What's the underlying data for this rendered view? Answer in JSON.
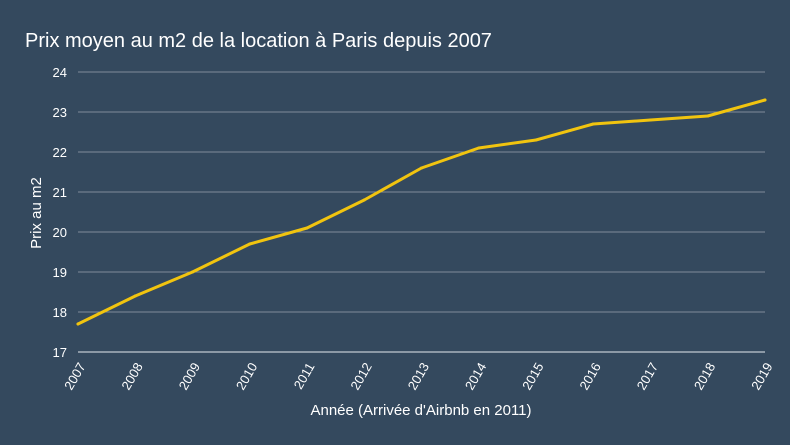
{
  "chart_data": {
    "type": "line",
    "title": "Prix moyen au m2 de la location à Paris depuis 2007",
    "xlabel": "Année (Arrivée d'Airbnb en 2011)",
    "ylabel": "Prix au m2",
    "x": [
      "2007",
      "2008",
      "2009",
      "2010",
      "2011",
      "2012",
      "2013",
      "2014",
      "2015",
      "2016",
      "2017",
      "2018",
      "2019"
    ],
    "series": [
      {
        "values": [
          17.7,
          18.4,
          19.0,
          19.7,
          20.1,
          20.8,
          21.6,
          22.1,
          22.3,
          22.7,
          22.8,
          22.9,
          23.3
        ]
      }
    ],
    "ylim": [
      17,
      24
    ],
    "yticks": [
      17,
      18,
      19,
      20,
      21,
      22,
      23,
      24
    ],
    "grid": true,
    "legend": "none",
    "colors": {
      "background": "#34495e",
      "line": "#f1c40f",
      "grid": "#7f8c99",
      "text": "#ffffff"
    }
  }
}
